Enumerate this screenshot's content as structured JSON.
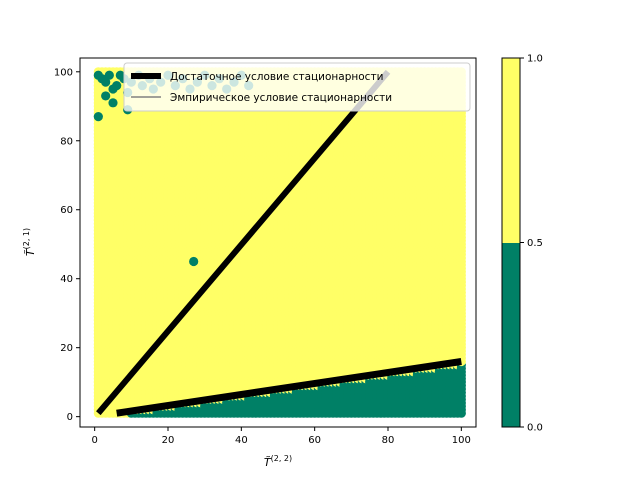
{
  "chart_data": {
    "type": "scatter",
    "title": "",
    "xlabel": "T̃",
    "xlabel_superscript": "(2, 2)",
    "ylabel": "T̃",
    "ylabel_superscript": "(2, 1)",
    "xlim": [
      -4,
      104
    ],
    "ylim": [
      -3,
      104
    ],
    "xticks": [
      0,
      20,
      40,
      60,
      80,
      100
    ],
    "yticks": [
      0,
      20,
      40,
      60,
      80,
      100
    ],
    "grid": false,
    "legend_position": "top-right",
    "colors": {
      "class_0": "#008066",
      "class_1": "#ffff66",
      "line_sufficient": "#000000",
      "line_empirical": "#808080"
    },
    "grid_points": {
      "x_range": [
        1,
        100
      ],
      "y_range": [
        1,
        100
      ],
      "classes": [
        0,
        1
      ],
      "rule": "class 0 where y <= 0.155*x - 0.5, plus scattered class-0 points near top-left and at (27, 45)"
    },
    "outliers_class_0": [
      {
        "x": 1,
        "y": 99
      },
      {
        "x": 2,
        "y": 98
      },
      {
        "x": 3,
        "y": 97
      },
      {
        "x": 4,
        "y": 99
      },
      {
        "x": 5,
        "y": 95
      },
      {
        "x": 6,
        "y": 96
      },
      {
        "x": 7,
        "y": 99
      },
      {
        "x": 8,
        "y": 98
      },
      {
        "x": 9,
        "y": 94
      },
      {
        "x": 10,
        "y": 97
      },
      {
        "x": 12,
        "y": 99
      },
      {
        "x": 13,
        "y": 96
      },
      {
        "x": 15,
        "y": 98
      },
      {
        "x": 16,
        "y": 95
      },
      {
        "x": 18,
        "y": 97
      },
      {
        "x": 20,
        "y": 99
      },
      {
        "x": 22,
        "y": 96
      },
      {
        "x": 24,
        "y": 98
      },
      {
        "x": 26,
        "y": 95
      },
      {
        "x": 28,
        "y": 97
      },
      {
        "x": 30,
        "y": 99
      },
      {
        "x": 32,
        "y": 96
      },
      {
        "x": 34,
        "y": 98
      },
      {
        "x": 36,
        "y": 95
      },
      {
        "x": 38,
        "y": 97
      },
      {
        "x": 40,
        "y": 99
      },
      {
        "x": 42,
        "y": 96
      },
      {
        "x": 3,
        "y": 93
      },
      {
        "x": 5,
        "y": 91
      },
      {
        "x": 1,
        "y": 87
      },
      {
        "x": 9,
        "y": 89
      },
      {
        "x": 27,
        "y": 45
      }
    ],
    "series": [
      {
        "name": "Достаточное условие стационарности",
        "x": [
          1,
          80
        ],
        "y": [
          1,
          100
        ],
        "line_width": "thick"
      },
      {
        "name": "Эмпирическое условие стационарности",
        "x": [
          6,
          100
        ],
        "y": [
          1,
          16
        ],
        "line_width": "thick"
      }
    ],
    "colorbar": {
      "ticks": [
        0.0,
        0.5,
        1.0
      ],
      "tick_labels": [
        "0.0",
        "0.5",
        "1.0"
      ],
      "segments": [
        {
          "from": 0.0,
          "to": 0.5,
          "color": "#008066"
        },
        {
          "from": 0.5,
          "to": 1.0,
          "color": "#ffff66"
        }
      ]
    }
  }
}
